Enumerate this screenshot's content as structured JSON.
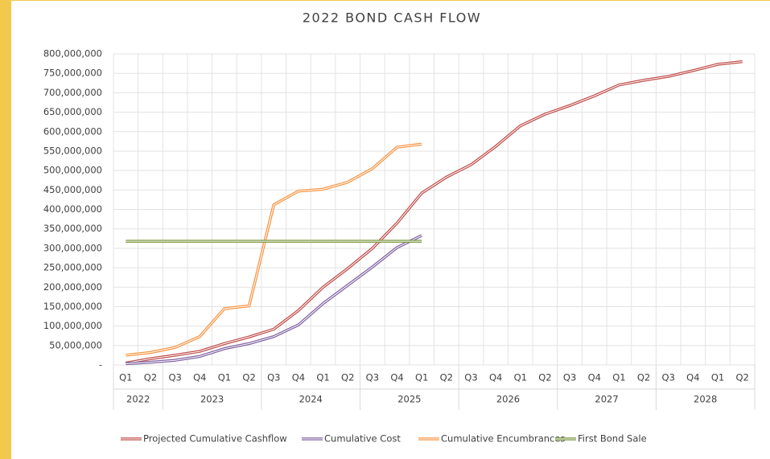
{
  "chart_data": {
    "type": "line",
    "title": "2022 BOND CASH FLOW",
    "categories": [
      "Q1",
      "Q2",
      "Q3",
      "Q4",
      "Q1",
      "Q2",
      "Q3",
      "Q4",
      "Q1",
      "Q2",
      "Q3",
      "Q4",
      "Q1",
      "Q2",
      "Q3",
      "Q4",
      "Q1",
      "Q2",
      "Q3",
      "Q4",
      "Q1",
      "Q2",
      "Q3",
      "Q4",
      "Q1",
      "Q2"
    ],
    "year_groups": [
      {
        "label": "2022",
        "count": 2
      },
      {
        "label": "2023",
        "count": 4
      },
      {
        "label": "2024",
        "count": 4
      },
      {
        "label": "2025",
        "count": 4
      },
      {
        "label": "2026",
        "count": 4
      },
      {
        "label": "2027",
        "count": 4
      },
      {
        "label": "2028",
        "count": 4
      }
    ],
    "series": [
      {
        "name": "Projected Cumulative Cashflow",
        "color": "#c0504d",
        "values": [
          5000000,
          16000000,
          25000000,
          35000000,
          55000000,
          72000000,
          92000000,
          140000000,
          200000000,
          248000000,
          300000000,
          365000000,
          442000000,
          483000000,
          515000000,
          562000000,
          615000000,
          645000000,
          667000000,
          692000000,
          720000000,
          732000000,
          742000000,
          757000000,
          773000000,
          780000000
        ]
      },
      {
        "name": "Cumulative Cost",
        "color": "#8064a2",
        "values": [
          3000000,
          7000000,
          12000000,
          22000000,
          42000000,
          55000000,
          73000000,
          103000000,
          158000000,
          205000000,
          252000000,
          302000000,
          333000000,
          null,
          null,
          null,
          null,
          null,
          null,
          null,
          null,
          null,
          null,
          null,
          null,
          null
        ]
      },
      {
        "name": "Cumulative Encumbrances",
        "color": "#f79646",
        "values": [
          25000000,
          32000000,
          45000000,
          73000000,
          145000000,
          152000000,
          412000000,
          447000000,
          452000000,
          470000000,
          505000000,
          560000000,
          568000000,
          null,
          null,
          null,
          null,
          null,
          null,
          null,
          null,
          null,
          null,
          null,
          null,
          null
        ]
      },
      {
        "name": "First Bond Sale",
        "color": "#77933c",
        "values": [
          318000000,
          318000000,
          318000000,
          318000000,
          318000000,
          318000000,
          318000000,
          318000000,
          318000000,
          318000000,
          318000000,
          318000000,
          318000000,
          null,
          null,
          null,
          null,
          null,
          null,
          null,
          null,
          null,
          null,
          null,
          null,
          null
        ]
      }
    ],
    "ylim": [
      0,
      800000000
    ],
    "yticks": [
      {
        "value": 0,
        "label": "-"
      },
      {
        "value": 50000000,
        "label": "50,000,000"
      },
      {
        "value": 100000000,
        "label": "100,000,000"
      },
      {
        "value": 150000000,
        "label": "150,000,000"
      },
      {
        "value": 200000000,
        "label": "200,000,000"
      },
      {
        "value": 250000000,
        "label": "250,000,000"
      },
      {
        "value": 300000000,
        "label": "300,000,000"
      },
      {
        "value": 350000000,
        "label": "350,000,000"
      },
      {
        "value": 400000000,
        "label": "400,000,000"
      },
      {
        "value": 450000000,
        "label": "450,000,000"
      },
      {
        "value": 500000000,
        "label": "500,000,000"
      },
      {
        "value": 550000000,
        "label": "550,000,000"
      },
      {
        "value": 600000000,
        "label": "600,000,000"
      },
      {
        "value": 650000000,
        "label": "650,000,000"
      },
      {
        "value": 700000000,
        "label": "700,000,000"
      },
      {
        "value": 750000000,
        "label": "750,000,000"
      },
      {
        "value": 800000000,
        "label": "800,000,000"
      }
    ],
    "grid": true,
    "legend": "bottom"
  }
}
